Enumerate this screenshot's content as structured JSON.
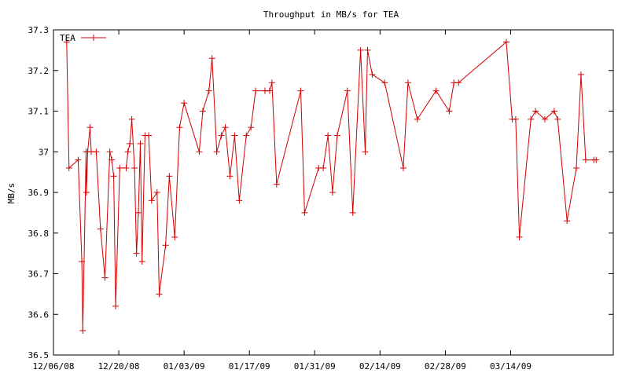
{
  "chart_data": {
    "type": "line",
    "title": "Throughput in MB/s for TEA",
    "xlabel": "",
    "ylabel": "MB/s",
    "ylim": [
      36.5,
      37.3
    ],
    "xlim": [
      "2008-12-06",
      "2009-04-05"
    ],
    "y_ticks": [
      "36.5",
      "36.6",
      "36.7",
      "36.8",
      "36.9",
      "37",
      "37.1",
      "37.2",
      "37.3"
    ],
    "x_ticks": [
      {
        "label": "12/06/08",
        "date": "2008-12-06"
      },
      {
        "label": "12/20/08",
        "date": "2008-12-20"
      },
      {
        "label": "01/03/09",
        "date": "2009-01-03"
      },
      {
        "label": "01/17/09",
        "date": "2009-01-17"
      },
      {
        "label": "01/31/09",
        "date": "2009-01-31"
      },
      {
        "label": "02/14/09",
        "date": "2009-02-14"
      },
      {
        "label": "02/28/09",
        "date": "2009-02-28"
      },
      {
        "label": "03/14/09",
        "date": "2009-03-14"
      }
    ],
    "grid": false,
    "legend": "top-left",
    "color": "#d40000",
    "series": [
      {
        "name": "TEA",
        "x": [
          "2008-12-08T20:00",
          "2008-12-09T08:00",
          "2008-12-11T07:00",
          "2008-12-12T02:00",
          "2008-12-12T07:00",
          "2008-12-13T00:00",
          "2008-12-13T02:00",
          "2008-12-13T08:00",
          "2008-12-13T20:00",
          "2008-12-14T02:00",
          "2008-12-15T04:00",
          "2008-12-16T02:00",
          "2008-12-17T01:00",
          "2008-12-18T02:00",
          "2008-12-18T12:00",
          "2008-12-18T22:00",
          "2008-12-19T08:00",
          "2008-12-20T05:00",
          "2008-12-21T14:00",
          "2008-12-21T23:00",
          "2008-12-22T09:00",
          "2008-12-22T19:00",
          "2008-12-23T09:00",
          "2008-12-23T19:00",
          "2008-12-24T05:00",
          "2008-12-24T15:00",
          "2008-12-25T00:00",
          "2008-12-25T15:00",
          "2008-12-26T10:00",
          "2008-12-27T01:00",
          "2008-12-28T05:00",
          "2008-12-28T16:00",
          "2008-12-30T01:00",
          "2008-12-30T20:00",
          "2009-01-01T00:00",
          "2009-01-02T01:00",
          "2009-01-03T00:00",
          "2009-01-06T06:00",
          "2009-01-07T00:00",
          "2009-01-08T08:00",
          "2009-01-09T00:00",
          "2009-01-10T00:00",
          "2009-01-11T00:00",
          "2009-01-11T20:00",
          "2009-01-12T20:00",
          "2009-01-13T20:00",
          "2009-01-14T20:00",
          "2009-01-16T08:00",
          "2009-01-17T08:00",
          "2009-01-18T08:00",
          "2009-01-20T08:00",
          "2009-01-21T08:00",
          "2009-01-21T20:00",
          "2009-01-22T20:00",
          "2009-01-28T00:00",
          "2009-01-28T20:00",
          "2009-01-31T20:00",
          "2009-02-01T20:00",
          "2009-02-02T20:00",
          "2009-02-03T20:00",
          "2009-02-04T20:00",
          "2009-02-07T00:00",
          "2009-02-08T04:00",
          "2009-02-09T20:00",
          "2009-02-10T20:00",
          "2009-02-11T08:00",
          "2009-02-12T08:00",
          "2009-02-15T00:00",
          "2009-02-19T00:00",
          "2009-02-20T00:00",
          "2009-02-22T00:00",
          "2009-02-26T00:00",
          "2009-02-28T20:00",
          "2009-03-01T20:00",
          "2009-03-02T20:00",
          "2009-03-13T02:00",
          "2009-03-14T08:00",
          "2009-03-15T02:00",
          "2009-03-15T21:00",
          "2009-03-18T08:00",
          "2009-03-19T08:00",
          "2009-03-21T08:00",
          "2009-03-23T08:00",
          "2009-03-24T02:00",
          "2009-03-26T02:00",
          "2009-03-28T02:00",
          "2009-03-29T02:00",
          "2009-03-30T02:00",
          "2009-03-31T20:00",
          "2009-04-01T08:00"
        ],
        "values": [
          37.27,
          36.96,
          36.98,
          36.73,
          36.56,
          37.0,
          36.9,
          37.0,
          37.06,
          37.0,
          37.0,
          36.81,
          36.69,
          37.0,
          36.98,
          36.94,
          36.62,
          36.96,
          36.96,
          37.0,
          37.02,
          37.08,
          36.96,
          36.75,
          36.85,
          37.02,
          36.73,
          37.04,
          37.04,
          36.88,
          36.9,
          36.65,
          36.77,
          36.94,
          36.79,
          37.06,
          37.12,
          37.0,
          37.1,
          37.15,
          37.23,
          37.0,
          37.04,
          37.06,
          36.94,
          37.04,
          36.88,
          37.04,
          37.06,
          37.15,
          37.15,
          37.15,
          37.17,
          36.92,
          37.15,
          36.85,
          36.96,
          36.96,
          37.04,
          36.9,
          37.04,
          37.15,
          36.85,
          37.25,
          37.0,
          37.25,
          37.19,
          37.17,
          36.96,
          37.17,
          37.08,
          37.15,
          37.1,
          37.17,
          37.17,
          37.27,
          37.08,
          37.08,
          36.79,
          37.08,
          37.1,
          37.08,
          37.1,
          37.08,
          36.83,
          36.96,
          37.19,
          36.98,
          36.98,
          36.98
        ]
      }
    ]
  }
}
